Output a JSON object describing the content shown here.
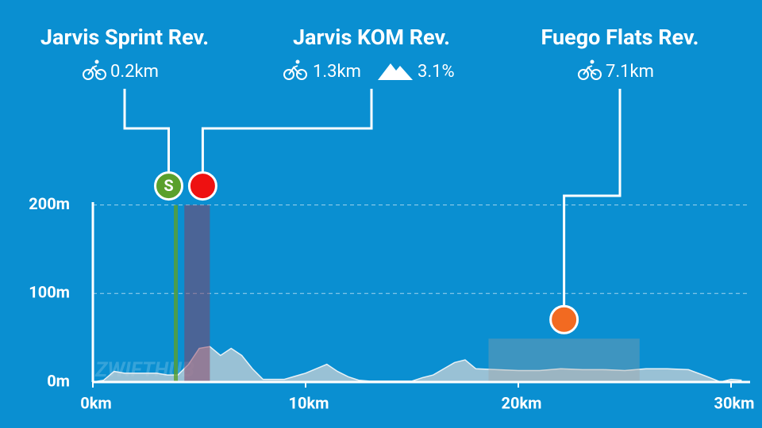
{
  "chart_data": {
    "type": "area",
    "watermark": "ZWIFTHUB",
    "x": [
      0,
      0.5,
      1,
      1.5,
      2,
      3,
      3.5,
      4,
      4.5,
      5,
      5.5,
      6,
      6.5,
      7,
      7.5,
      8,
      9,
      10,
      11,
      11.5,
      12,
      12.5,
      13,
      14,
      15,
      15.5,
      16,
      17,
      17.5,
      18,
      19,
      20,
      21,
      22,
      23,
      24,
      25,
      26,
      27,
      28,
      29,
      29.5,
      30,
      30.5
    ],
    "series": [
      {
        "color": "#b3cad6",
        "values": [
          0,
          2,
          12,
          10,
          10,
          10,
          8,
          8,
          20,
          38,
          40,
          30,
          38,
          30,
          15,
          3,
          3,
          10,
          20,
          12,
          6,
          2,
          1,
          1,
          1,
          5,
          8,
          22,
          25,
          15,
          14,
          13,
          13,
          15,
          14,
          14,
          13,
          15,
          15,
          14,
          5,
          0,
          3,
          2
        ]
      }
    ],
    "xlim": [
      0,
      30
    ],
    "xticks": [
      {
        "value": 0,
        "label": "0km"
      },
      {
        "value": 10,
        "label": "10km"
      },
      {
        "value": 20,
        "label": "20km"
      },
      {
        "value": 30,
        "label": "30km"
      }
    ],
    "ylim": [
      0,
      205
    ],
    "yticks": [
      {
        "value": 0,
        "label": "0m"
      },
      {
        "value": 100,
        "label": "100m"
      },
      {
        "value": 200,
        "label": "200m"
      }
    ],
    "grid": true,
    "segments": [
      {
        "name": "Jarvis Sprint Rev.",
        "distance": "0.2km",
        "marker": "S",
        "color": "#5aa02c",
        "start": 3.9,
        "end": 3.9,
        "top": 200
      },
      {
        "name": "Jarvis KOM Rev.",
        "distance": "1.3km",
        "grade": "3.1%",
        "color": "#ee1111",
        "region_color": "#8b3a5c",
        "start": 4.3,
        "end": 5.5,
        "top": 200
      },
      {
        "name": "Fuego Flats Rev.",
        "distance": "7.1km",
        "color": "#f26a21",
        "region_color": "#a0a0a0",
        "start": 18.6,
        "end": 25.7,
        "top": 49
      }
    ]
  }
}
